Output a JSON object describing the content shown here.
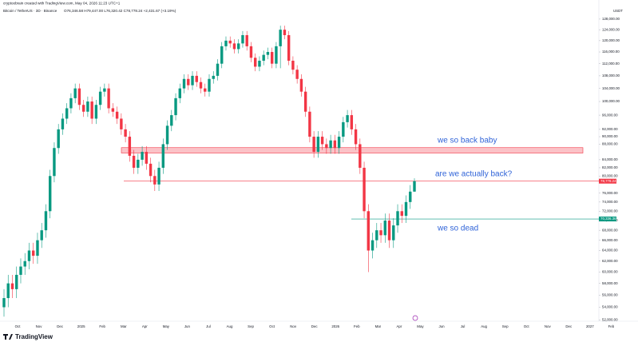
{
  "header": {
    "credit": "cryptoobrain created with TradingView.com, May 04, 2026 11:23 UTC+1",
    "symbol": "Bitcoin / TetherUS · 3D · Binance",
    "ohlc": "O76,346.58 H79,447.00 L76,320.42 C78,778.24 +2,431.67 (+3.19%)"
  },
  "chart_data": {
    "type": "candlestick",
    "log_scale": true,
    "axis_unit": "USDT",
    "up_color": "#089981",
    "down_color": "#f23645",
    "ylim": [
      50800,
      131700
    ],
    "yticks": [
      {
        "value": 52000,
        "label": "52,000.00"
      },
      {
        "value": 54000,
        "label": "54,000.00"
      },
      {
        "value": 56000,
        "label": "56,000.00"
      },
      {
        "value": 58000,
        "label": "58,000.00"
      },
      {
        "value": 60000,
        "label": "60,000.00"
      },
      {
        "value": 62000,
        "label": "62,000.00"
      },
      {
        "value": 64000,
        "label": "64,000.00"
      },
      {
        "value": 66000,
        "label": "66,000.00"
      },
      {
        "value": 68000,
        "label": "68,000.00"
      },
      {
        "value": 70000,
        "label": "70,000.00"
      },
      {
        "value": 72000,
        "label": "72,000.00"
      },
      {
        "value": 74000,
        "label": "74,000.00"
      },
      {
        "value": 76000,
        "label": "76,000.00"
      },
      {
        "value": 80000,
        "label": "80,000.00"
      },
      {
        "value": 82000,
        "label": "82,000.00"
      },
      {
        "value": 84000,
        "label": "84,000.00"
      },
      {
        "value": 88000,
        "label": "88,000.00"
      },
      {
        "value": 90000,
        "label": "90,000.00"
      },
      {
        "value": 92000,
        "label": "92,000.00"
      },
      {
        "value": 96000,
        "label": "96,000.00"
      },
      {
        "value": 100000,
        "label": "100,000.00"
      },
      {
        "value": 104000,
        "label": "104,000.00"
      },
      {
        "value": 108000,
        "label": "108,000.00"
      },
      {
        "value": 112000,
        "label": "112,000.00"
      },
      {
        "value": 116000,
        "label": "116,000.00"
      },
      {
        "value": 120000,
        "label": "120,000.00"
      },
      {
        "value": 124000,
        "label": "124,000.00"
      },
      {
        "value": 128000,
        "label": "128,000.00"
      }
    ],
    "xlabels": [
      "Oct",
      "Nov",
      "Dec",
      "2025",
      "Feb",
      "Mar",
      "Apr",
      "May",
      "Jun",
      "Jul",
      "Aug",
      "Sep",
      "Oct",
      "Nov",
      "Dec",
      "2026",
      "Feb",
      "Mar",
      "Apr",
      "May",
      "Jun",
      "Jul",
      "Aug",
      "Sep",
      "Oct",
      "Nov",
      "Dec",
      "2027",
      "Feb"
    ],
    "open": [
      54000,
      55500,
      58000,
      57000,
      59500,
      61000,
      62000,
      64000,
      63000,
      66000,
      68000,
      72000,
      80000,
      87000,
      92000,
      95000,
      98000,
      101000,
      104000,
      99000,
      97000,
      100000,
      95000,
      99000,
      103000,
      104000,
      98000,
      97000,
      95000,
      92000,
      90000,
      85000,
      82000,
      84000,
      86000,
      83000,
      80000,
      78000,
      82000,
      88000,
      93000,
      96000,
      101000,
      104000,
      107000,
      105000,
      108000,
      106000,
      104000,
      103000,
      107000,
      108000,
      112000,
      118000,
      120000,
      119000,
      117000,
      119000,
      122000,
      118000,
      114000,
      111000,
      113000,
      115000,
      116000,
      112000,
      118000,
      124000,
      122000,
      113000,
      110000,
      107000,
      103000,
      97000,
      90000,
      86000,
      90000,
      88000,
      87000,
      89000,
      87000,
      90000,
      94000,
      96000,
      92000,
      88000,
      82000,
      72000,
      64000,
      66000,
      68000,
      67000,
      70000,
      66000,
      69000,
      72000,
      71000,
      74000,
      76346.58
    ],
    "high": [
      57000,
      59500,
      59500,
      61000,
      62500,
      63500,
      65500,
      65500,
      67500,
      69500,
      73500,
      81500,
      88500,
      93500,
      96500,
      99500,
      102500,
      105500,
      105500,
      100500,
      101500,
      101500,
      100500,
      104500,
      105500,
      105500,
      99500,
      98500,
      96500,
      93500,
      91500,
      86500,
      85500,
      87500,
      87500,
      84500,
      81500,
      83500,
      89500,
      94500,
      97500,
      102500,
      105500,
      108500,
      108500,
      109500,
      109500,
      107500,
      105500,
      108500,
      109500,
      113500,
      119500,
      121500,
      121500,
      120500,
      120500,
      123500,
      123500,
      119500,
      115500,
      114500,
      116500,
      117500,
      117500,
      119500,
      125500,
      125500,
      123500,
      114500,
      111500,
      108500,
      104500,
      98500,
      91500,
      91500,
      91500,
      89500,
      90500,
      90500,
      91500,
      95500,
      97500,
      97500,
      93500,
      89500,
      83500,
      73500,
      67500,
      69500,
      69500,
      71500,
      71500,
      70500,
      73500,
      73500,
      75500,
      77850,
      79447
    ],
    "low": [
      52500,
      54000,
      55500,
      55500,
      58000,
      59500,
      60500,
      61500,
      61500,
      64500,
      66500,
      70500,
      78500,
      85500,
      90500,
      93500,
      96500,
      99500,
      97500,
      95500,
      95500,
      93500,
      93500,
      97500,
      101500,
      96500,
      95500,
      93500,
      90500,
      88500,
      83500,
      80500,
      80500,
      82500,
      81500,
      78500,
      76500,
      76500,
      80500,
      86500,
      91500,
      94500,
      99500,
      102500,
      103500,
      103500,
      104500,
      102500,
      101500,
      101500,
      105500,
      106500,
      110500,
      116500,
      117500,
      115500,
      115500,
      117500,
      116500,
      112500,
      109500,
      109500,
      111500,
      113500,
      110500,
      110500,
      110500,
      120500,
      111500,
      108500,
      105500,
      101500,
      95500,
      88500,
      84500,
      84500,
      86500,
      85500,
      85500,
      85500,
      85500,
      88500,
      92500,
      90500,
      86500,
      80500,
      70500,
      60000,
      62500,
      64500,
      65500,
      65500,
      64500,
      64500,
      67500,
      69500,
      69500,
      72500,
      76320.42
    ],
    "close": [
      55500,
      58000,
      57000,
      59500,
      61000,
      62000,
      64000,
      63000,
      66000,
      68000,
      72000,
      80000,
      87000,
      92000,
      95000,
      98000,
      101000,
      104000,
      99000,
      97000,
      100000,
      95000,
      99000,
      103000,
      104000,
      98000,
      97000,
      95000,
      92000,
      90000,
      85000,
      82000,
      84000,
      86000,
      83000,
      80000,
      78000,
      82000,
      88000,
      93000,
      96000,
      101000,
      104000,
      107000,
      105000,
      108000,
      106000,
      104000,
      103000,
      107000,
      108000,
      112000,
      118000,
      120000,
      119000,
      117000,
      119000,
      122000,
      118000,
      114000,
      111000,
      113000,
      115000,
      116000,
      112000,
      118000,
      124000,
      122000,
      113000,
      110000,
      107000,
      103000,
      97000,
      90000,
      86000,
      90000,
      88000,
      87000,
      89000,
      87000,
      90000,
      94000,
      96000,
      92000,
      88000,
      82000,
      72000,
      64000,
      66000,
      68000,
      67000,
      70000,
      66000,
      69000,
      72000,
      71000,
      74000,
      76346.58,
      78778.24
    ],
    "zone": {
      "low": 85700,
      "high": 87100,
      "color": "#f23645"
    },
    "levels": [
      {
        "value": 78778.24,
        "label": "78,778.24",
        "color": "#f23645"
      },
      {
        "value": 70336.36,
        "label": "70,336.36",
        "color": "#089981"
      }
    ],
    "annotations": [
      "we so back baby",
      "are we actually back?",
      "we so dead"
    ]
  },
  "footer": {
    "brand": "TradingView"
  }
}
